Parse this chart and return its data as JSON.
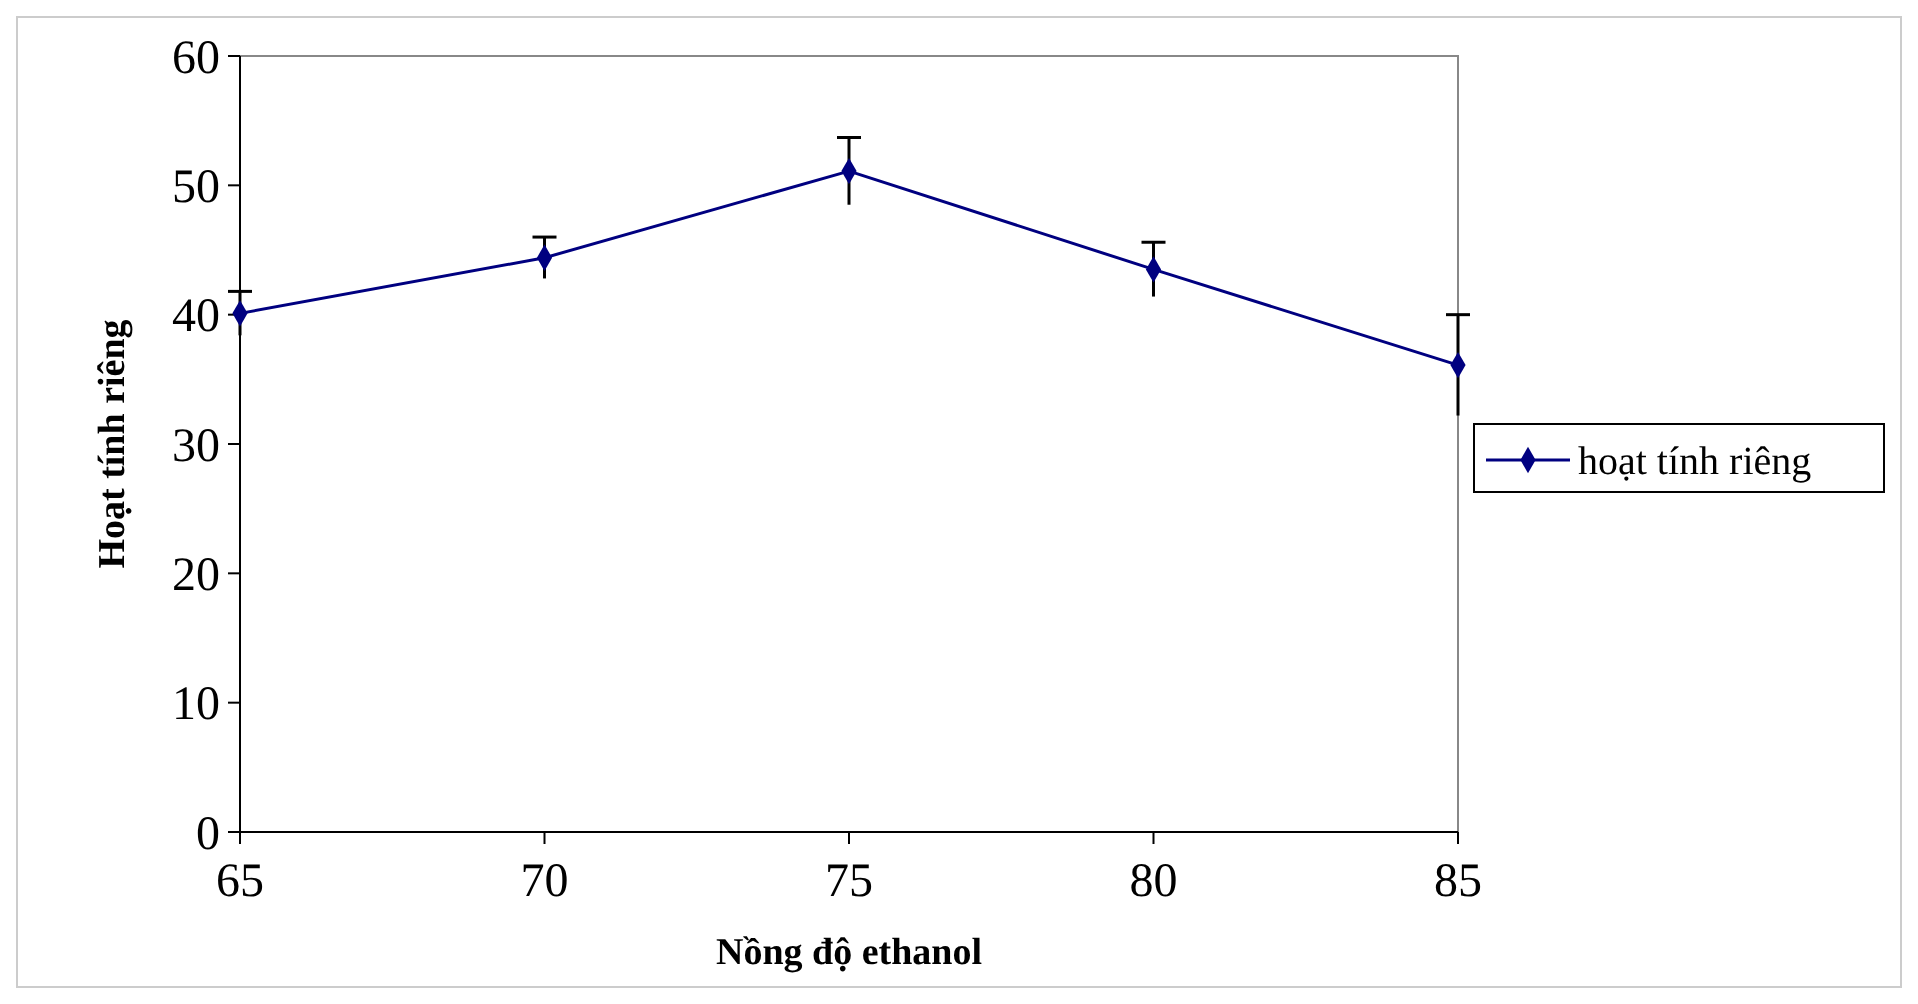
{
  "chart_data": {
    "type": "line",
    "xlabel": "Nồng độ ethanol",
    "ylabel": "Hoạt tính riêng",
    "x": [
      65,
      70,
      75,
      80,
      85
    ],
    "series": [
      {
        "name": "hoạt tính riêng",
        "color": "#000080",
        "values": [
          40.1,
          44.4,
          51.1,
          43.5,
          36.1
        ],
        "errors": [
          1.7,
          1.6,
          2.6,
          2.1,
          3.9
        ]
      }
    ],
    "xlim": [
      65,
      85
    ],
    "xticks": [
      65,
      70,
      75,
      80,
      85
    ],
    "ylim": [
      0,
      60
    ],
    "yticks": [
      0,
      10,
      20,
      30,
      40,
      50,
      60
    ],
    "grid": false,
    "legend": "right",
    "marker": "diamond",
    "line_style": "solid"
  }
}
